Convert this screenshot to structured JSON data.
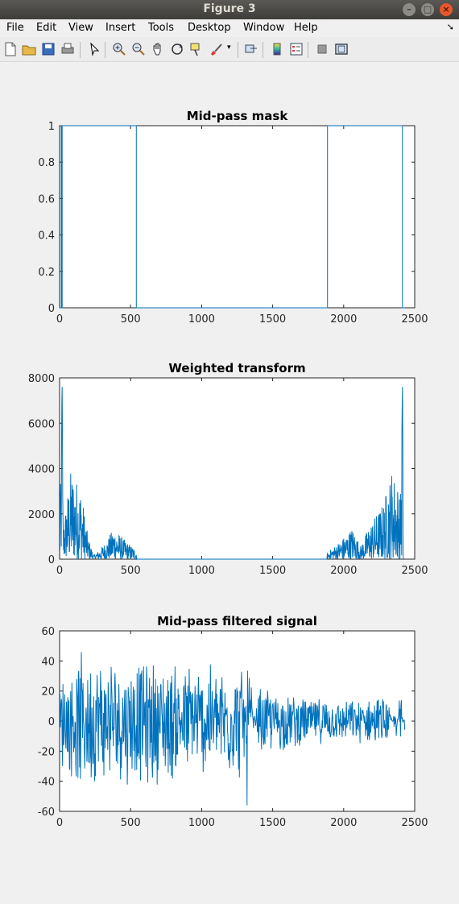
{
  "window": {
    "title": "Figure 3"
  },
  "menu": [
    "File",
    "Edit",
    "View",
    "Insert",
    "Tools",
    "Desktop",
    "Window",
    "Help"
  ],
  "menu_underline": [
    0,
    0,
    0,
    0,
    0,
    0,
    0,
    0
  ],
  "toolbar": {
    "icons": [
      "new-figure-icon",
      "open-file-icon",
      "save-icon",
      "print-icon",
      "pointer-icon",
      "zoom-in-icon",
      "zoom-out-icon",
      "pan-icon",
      "rotate-3d-icon",
      "data-cursor-icon",
      "brush-icon",
      "link-plot-icon",
      "colorbar-icon",
      "legend-icon",
      "hide-plot-tools-icon",
      "show-plot-tools-icon"
    ]
  },
  "colors": {
    "line": "#0072bd",
    "axes_bg": "#ffffff",
    "figure_bg": "#f0f0f0"
  },
  "chart_data": [
    {
      "type": "line",
      "title": "Mid-pass mask",
      "xlim": [
        0,
        2500
      ],
      "ylim": [
        0,
        1
      ],
      "xticks": [
        "0",
        "500",
        "1000",
        "1500",
        "2000",
        "2500"
      ],
      "yticks": [
        "0",
        "0.2",
        "0.4",
        "0.6",
        "0.8",
        "1"
      ],
      "series": [
        {
          "x": [
            0,
            12,
            12,
            14,
            14,
            18,
            18,
            540,
            540,
            546,
            546,
            1880,
            1880,
            1886,
            1886,
            2414,
            2414,
            2420,
            2420,
            2428,
            2428,
            2432
          ],
          "y": [
            0,
            0,
            1,
            1,
            0,
            0,
            1,
            1,
            0,
            0,
            0,
            0,
            0,
            0,
            1,
            1,
            0,
            0,
            0,
            0,
            0,
            0
          ]
        }
      ]
    },
    {
      "type": "line",
      "title": "Weighted transform",
      "xlim": [
        0,
        2500
      ],
      "ylim": [
        0,
        8000
      ],
      "xticks": [
        "0",
        "500",
        "1000",
        "1500",
        "2000",
        "2500"
      ],
      "yticks": [
        "0",
        "2000",
        "4000",
        "6000",
        "8000"
      ],
      "series": [
        {
          "envelope": [
            [
              0,
              1200
            ],
            [
              18,
              7600
            ],
            [
              25,
              1500
            ],
            [
              80,
              4000
            ],
            [
              150,
              3200
            ],
            [
              200,
              1000
            ],
            [
              240,
              200
            ],
            [
              280,
              400
            ],
            [
              340,
              900
            ],
            [
              380,
              1400
            ],
            [
              450,
              900
            ],
            [
              540,
              400
            ],
            [
              546,
              0
            ],
            [
              1880,
              0
            ],
            [
              1886,
              300
            ],
            [
              1990,
              900
            ],
            [
              2060,
              1400
            ],
            [
              2120,
              600
            ],
            [
              2180,
              1500
            ],
            [
              2280,
              2500
            ],
            [
              2340,
              4000
            ],
            [
              2400,
              3000
            ],
            [
              2414,
              7600
            ],
            [
              2420,
              0
            ]
          ]
        }
      ]
    },
    {
      "type": "line",
      "title": "Mid-pass filtered signal",
      "xlim": [
        0,
        2500
      ],
      "ylim": [
        -60,
        60
      ],
      "xticks": [
        "0",
        "500",
        "1000",
        "1500",
        "2000",
        "2500"
      ],
      "yticks": [
        "-60",
        "-40",
        "-20",
        "0",
        "20",
        "40",
        "60"
      ],
      "series": [
        {
          "envelope": [
            [
              0,
              32
            ],
            [
              150,
              47
            ],
            [
              400,
              44
            ],
            [
              700,
              44
            ],
            [
              1000,
              40
            ],
            [
              1300,
              40
            ],
            [
              1320,
              -56
            ],
            [
              1400,
              25
            ],
            [
              1700,
              18
            ],
            [
              2000,
              14
            ],
            [
              2300,
              18
            ],
            [
              2370,
              -12
            ],
            [
              2400,
              33
            ],
            [
              2432,
              -10
            ]
          ]
        }
      ]
    }
  ]
}
